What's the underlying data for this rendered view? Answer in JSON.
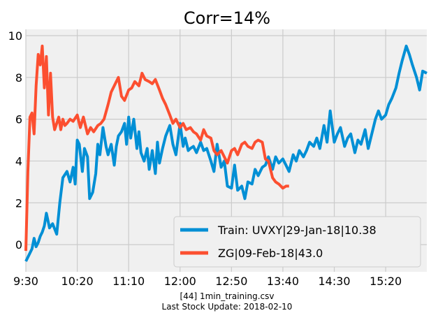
{
  "chart_data": {
    "type": "line",
    "title": "Corr=14%",
    "xlabel": "",
    "ylabel": "",
    "xlim": [
      0,
      390
    ],
    "ylim": [
      -1.3,
      10.3
    ],
    "x_ticks": [
      {
        "pos": 0,
        "label": "9:30"
      },
      {
        "pos": 50,
        "label": "10:20"
      },
      {
        "pos": 100,
        "label": "11:10"
      },
      {
        "pos": 150,
        "label": "12:00"
      },
      {
        "pos": 200,
        "label": "12:50"
      },
      {
        "pos": 250,
        "label": "13:40"
      },
      {
        "pos": 300,
        "label": "14:30"
      },
      {
        "pos": 350,
        "label": "15:20"
      }
    ],
    "y_ticks": [
      0,
      2,
      4,
      6,
      8,
      10
    ],
    "grid": true,
    "legend_position": "bottom-right",
    "background": "#f0f0f0",
    "series": [
      {
        "name": "Train: UVXY|29-Jan-18|10.38",
        "color": "#008fd5",
        "x": [
          0,
          3,
          6,
          8,
          10,
          12,
          14,
          16,
          18,
          20,
          23,
          26,
          30,
          33,
          36,
          40,
          43,
          46,
          48,
          50,
          52,
          55,
          57,
          60,
          62,
          65,
          68,
          70,
          72,
          75,
          78,
          80,
          83,
          86,
          88,
          90,
          93,
          96,
          98,
          100,
          102,
          105,
          108,
          110,
          112,
          115,
          118,
          120,
          123,
          126,
          128,
          130,
          133,
          136,
          140,
          143,
          146,
          150,
          153,
          155,
          158,
          160,
          163,
          166,
          170,
          173,
          176,
          180,
          183,
          186,
          190,
          193,
          196,
          200,
          203,
          206,
          210,
          213,
          216,
          220,
          223,
          226,
          230,
          233,
          236,
          240,
          243,
          246,
          250,
          253,
          256,
          260,
          263,
          266,
          270,
          273,
          276,
          280,
          283,
          286,
          290,
          293,
          296,
          300,
          303,
          306,
          310,
          313,
          316,
          320,
          323,
          326,
          330,
          333,
          336,
          340,
          343,
          346,
          350,
          353,
          356,
          360,
          363,
          366,
          370,
          373,
          376,
          380,
          383,
          386,
          390
        ],
        "y": [
          -0.8,
          -0.5,
          -0.2,
          0.3,
          -0.1,
          0.1,
          0.4,
          0.6,
          0.9,
          1.5,
          0.8,
          1.0,
          0.5,
          2.0,
          3.2,
          3.5,
          3.0,
          3.7,
          2.9,
          5.0,
          4.8,
          3.5,
          4.6,
          4.2,
          2.2,
          2.5,
          3.4,
          4.8,
          4.3,
          5.6,
          4.7,
          4.3,
          4.8,
          3.8,
          4.7,
          5.2,
          5.4,
          5.8,
          4.8,
          6.1,
          5.1,
          6.0,
          4.6,
          5.4,
          4.4,
          4.0,
          4.6,
          3.6,
          4.5,
          3.4,
          4.9,
          3.9,
          4.6,
          5.2,
          5.7,
          4.8,
          4.3,
          5.8,
          4.7,
          5.1,
          4.5,
          4.6,
          4.7,
          4.4,
          4.9,
          4.5,
          4.6,
          4.0,
          3.5,
          4.8,
          3.7,
          4.0,
          2.8,
          2.7,
          3.8,
          2.6,
          2.8,
          2.2,
          3.0,
          2.9,
          3.6,
          3.3,
          3.7,
          3.8,
          4.2,
          3.6,
          4.2,
          3.9,
          4.1,
          3.8,
          3.5,
          4.3,
          4.0,
          4.5,
          4.2,
          4.5,
          4.9,
          4.7,
          5.1,
          4.6,
          5.7,
          4.9,
          6.4,
          4.9,
          5.3,
          5.6,
          4.7,
          5.1,
          5.3,
          4.4,
          5.0,
          4.8,
          5.5,
          4.6,
          5.2,
          6.0,
          6.4,
          6.0,
          6.2,
          6.7,
          7.0,
          7.5,
          8.2,
          8.8,
          9.5,
          9.1,
          8.6,
          8.0,
          7.4,
          8.3,
          8.2
        ],
        "x_trim": 387
      },
      {
        "name": "ZG|09-Feb-18|43.0",
        "color": "#fc4f30",
        "x": [
          0,
          2,
          4,
          6,
          8,
          10,
          12,
          14,
          16,
          18,
          20,
          22,
          24,
          26,
          28,
          30,
          32,
          34,
          36,
          38,
          40,
          43,
          46,
          50,
          53,
          56,
          60,
          63,
          66,
          70,
          73,
          76,
          80,
          83,
          86,
          90,
          93,
          96,
          100,
          103,
          106,
          110,
          113,
          116,
          120,
          123,
          126,
          130,
          133,
          136,
          140,
          143,
          146,
          150,
          153,
          156,
          160,
          163,
          166,
          170,
          173,
          176,
          180,
          183,
          186,
          190,
          193,
          196,
          200,
          203,
          206,
          210,
          213,
          216,
          220,
          223,
          226,
          230,
          233,
          236,
          240,
          243,
          246,
          250,
          253,
          256
        ],
        "y": [
          -0.3,
          3.5,
          6.1,
          6.3,
          5.3,
          7.6,
          9.1,
          8.6,
          9.5,
          7.5,
          9.0,
          6.2,
          8.2,
          6.1,
          5.5,
          5.8,
          6.1,
          5.5,
          6.0,
          5.7,
          5.8,
          6.0,
          5.9,
          6.2,
          5.6,
          6.1,
          5.3,
          5.6,
          5.4,
          5.7,
          5.8,
          6.0,
          6.7,
          7.3,
          7.6,
          8.0,
          7.1,
          6.9,
          7.4,
          7.5,
          7.8,
          7.6,
          8.2,
          7.9,
          7.8,
          7.7,
          7.9,
          7.4,
          7.0,
          6.7,
          6.2,
          5.8,
          6.0,
          5.6,
          5.8,
          5.5,
          5.6,
          5.4,
          5.3,
          5.0,
          5.5,
          5.2,
          5.1,
          4.5,
          4.3,
          4.5,
          4.2,
          3.9,
          4.5,
          4.6,
          4.3,
          4.8,
          4.9,
          4.7,
          4.6,
          4.9,
          5.0,
          4.9,
          4.1,
          4.0,
          3.2,
          3.0,
          2.9,
          2.7,
          2.8,
          2.8
        ]
      }
    ]
  },
  "footer": {
    "line1": "[44] 1min_training.csv",
    "line2": "Last Stock Update: 2018-02-10"
  }
}
